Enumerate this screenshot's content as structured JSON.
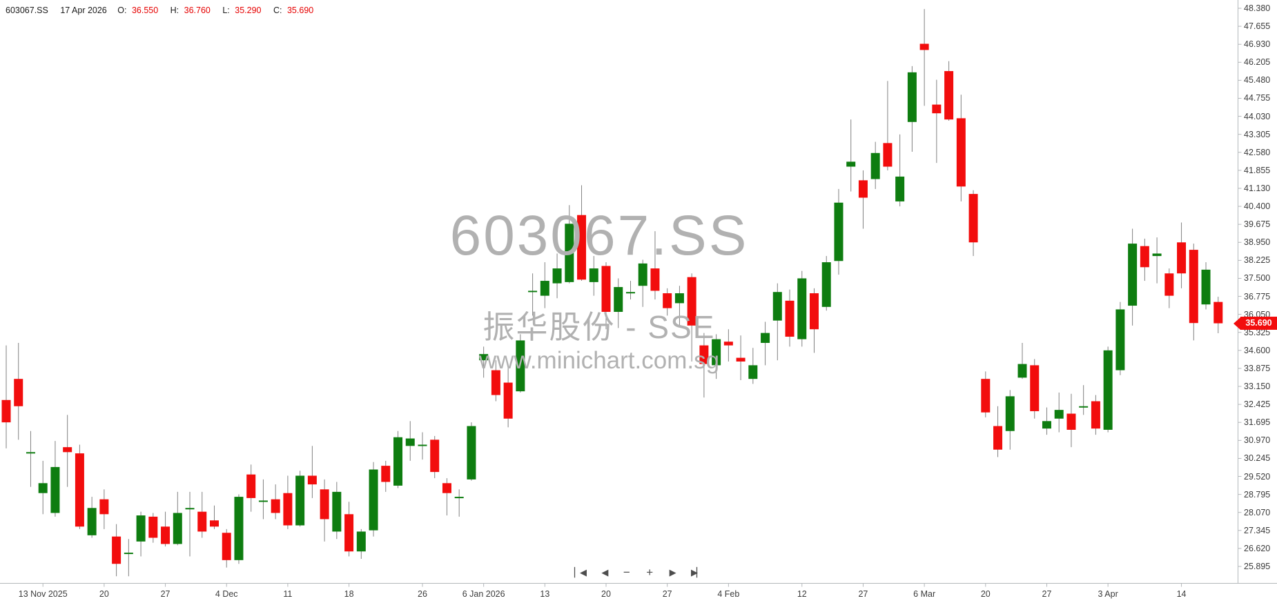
{
  "header": {
    "symbol": "603067.SS",
    "date": "17 Apr 2026",
    "o_label": "O:",
    "open": "36.550",
    "h_label": "H:",
    "high": "36.760",
    "l_label": "L:",
    "low": "35.290",
    "c_label": "C:",
    "close": "35.690"
  },
  "watermark": {
    "title": "603067.SS",
    "subtitle": "振华股份 - SSE",
    "url": "www.minichart.com.sg"
  },
  "price_marker": {
    "value": "35.690",
    "price": 35.69
  },
  "controls": [
    {
      "name": "skip-to-start",
      "glyph": "▏◀"
    },
    {
      "name": "step-back",
      "glyph": "◀"
    },
    {
      "name": "zoom-out",
      "glyph": "−"
    },
    {
      "name": "zoom-in",
      "glyph": "+"
    },
    {
      "name": "step-forward",
      "glyph": "▶"
    },
    {
      "name": "skip-to-end",
      "glyph": "▶▏"
    }
  ],
  "colors": {
    "up": "#0e7d10",
    "down": "#f20d0d",
    "wick": "#808080",
    "axis": "#b3b7ba",
    "tick_text": "#3b3b3b",
    "value_red": "#e60000",
    "watermark": "#b1b1b1",
    "marker_bg": "#f20d0d"
  },
  "y_axis": {
    "labels": [
      "48.380",
      "47.655",
      "46.930",
      "46.205",
      "45.480",
      "44.755",
      "44.030",
      "43.305",
      "42.580",
      "41.855",
      "41.130",
      "40.400",
      "39.675",
      "38.950",
      "38.225",
      "37.500",
      "36.775",
      "36.050",
      "35.325",
      "34.600",
      "33.875",
      "33.150",
      "32.425",
      "31.695",
      "30.970",
      "30.245",
      "29.520",
      "28.795",
      "28.070",
      "27.345",
      "26.620",
      "25.895"
    ]
  },
  "x_axis": {
    "ticks": [
      {
        "i": 3,
        "label": "13 Nov 2025"
      },
      {
        "i": 8,
        "label": "20"
      },
      {
        "i": 13,
        "label": "27"
      },
      {
        "i": 18,
        "label": "4 Dec"
      },
      {
        "i": 23,
        "label": "11"
      },
      {
        "i": 28,
        "label": "18"
      },
      {
        "i": 34,
        "label": "26"
      },
      {
        "i": 39,
        "label": "6 Jan 2026"
      },
      {
        "i": 44,
        "label": "13"
      },
      {
        "i": 49,
        "label": "20"
      },
      {
        "i": 54,
        "label": "27"
      },
      {
        "i": 59,
        "label": "4 Feb"
      },
      {
        "i": 65,
        "label": "12"
      },
      {
        "i": 70,
        "label": "27"
      },
      {
        "i": 75,
        "label": "6 Mar"
      },
      {
        "i": 80,
        "label": "20"
      },
      {
        "i": 85,
        "label": "27"
      },
      {
        "i": 90,
        "label": "3 Apr"
      },
      {
        "i": 96,
        "label": "14"
      }
    ]
  },
  "chart_data": {
    "type": "candlestick",
    "title": "603067.SS",
    "subtitle": "振华股份 - SSE",
    "ylim": [
      25.895,
      48.38
    ],
    "y_tick_step": 0.725,
    "legend_position": "none",
    "grid": false,
    "last_close": 35.69,
    "x_tick_labels": [
      "13 Nov 2025",
      "20",
      "27",
      "4 Dec",
      "11",
      "18",
      "26",
      "6 Jan 2026",
      "13",
      "20",
      "27",
      "4 Feb",
      "12",
      "27",
      "6 Mar",
      "20",
      "27",
      "3 Apr",
      "14"
    ],
    "candles_ohlc": [
      [
        32.6,
        34.8,
        30.65,
        31.7
      ],
      [
        33.45,
        34.9,
        31.0,
        32.35
      ],
      [
        30.45,
        31.35,
        29.1,
        30.5
      ],
      [
        28.85,
        30.15,
        28.0,
        29.25
      ],
      [
        28.05,
        30.95,
        27.9,
        29.9
      ],
      [
        30.7,
        32.0,
        29.1,
        30.5
      ],
      [
        30.45,
        30.8,
        27.4,
        27.5
      ],
      [
        27.15,
        28.7,
        27.05,
        28.25
      ],
      [
        28.6,
        29.0,
        27.4,
        28.0
      ],
      [
        27.1,
        27.6,
        25.5,
        26.0
      ],
      [
        26.4,
        27.0,
        25.5,
        26.45
      ],
      [
        26.9,
        28.1,
        26.3,
        27.95
      ],
      [
        27.9,
        28.05,
        26.85,
        27.05
      ],
      [
        27.5,
        28.1,
        26.7,
        26.8
      ],
      [
        26.8,
        28.9,
        26.75,
        28.05
      ],
      [
        28.2,
        28.9,
        26.3,
        28.25
      ],
      [
        28.1,
        28.9,
        27.05,
        27.3
      ],
      [
        27.75,
        28.35,
        27.4,
        27.5
      ],
      [
        27.25,
        27.4,
        25.85,
        26.15
      ],
      [
        26.15,
        28.8,
        26.0,
        28.7
      ],
      [
        29.6,
        30.0,
        28.1,
        28.65
      ],
      [
        28.5,
        29.4,
        27.8,
        28.55
      ],
      [
        28.6,
        29.2,
        27.8,
        28.05
      ],
      [
        28.85,
        29.55,
        27.4,
        27.55
      ],
      [
        27.55,
        29.75,
        27.5,
        29.55
      ],
      [
        29.55,
        30.75,
        28.65,
        29.2
      ],
      [
        29.0,
        29.4,
        26.9,
        27.8
      ],
      [
        27.3,
        29.3,
        27.0,
        28.9
      ],
      [
        28.0,
        28.5,
        26.3,
        26.5
      ],
      [
        26.5,
        27.4,
        26.2,
        27.3
      ],
      [
        27.35,
        30.1,
        27.1,
        29.8
      ],
      [
        29.95,
        30.15,
        28.9,
        29.3
      ],
      [
        29.15,
        31.35,
        29.05,
        31.1
      ],
      [
        30.75,
        31.75,
        30.15,
        31.05
      ],
      [
        30.75,
        31.3,
        30.2,
        30.8
      ],
      [
        31.0,
        31.15,
        29.45,
        29.7
      ],
      [
        29.25,
        29.45,
        27.95,
        28.85
      ],
      [
        28.65,
        29.0,
        27.9,
        28.7
      ],
      [
        29.4,
        31.7,
        29.35,
        31.55
      ],
      [
        34.2,
        34.75,
        33.5,
        34.45
      ],
      [
        33.8,
        34.2,
        32.55,
        32.8
      ],
      [
        33.3,
        33.9,
        31.5,
        31.85
      ],
      [
        32.95,
        35.25,
        32.9,
        35.0
      ],
      [
        36.95,
        37.7,
        36.0,
        37.0
      ],
      [
        36.8,
        38.15,
        36.3,
        37.4
      ],
      [
        37.3,
        38.5,
        36.7,
        37.9
      ],
      [
        37.35,
        40.45,
        37.3,
        39.7
      ],
      [
        40.05,
        41.25,
        37.4,
        37.45
      ],
      [
        37.35,
        38.4,
        36.8,
        37.9
      ],
      [
        38.0,
        38.15,
        35.45,
        36.15
      ],
      [
        36.15,
        37.5,
        35.5,
        37.15
      ],
      [
        36.9,
        37.4,
        36.65,
        36.95
      ],
      [
        37.2,
        38.25,
        36.35,
        38.1
      ],
      [
        37.9,
        39.4,
        36.65,
        37.0
      ],
      [
        36.9,
        37.1,
        36.0,
        36.3
      ],
      [
        36.5,
        37.2,
        35.6,
        36.9
      ],
      [
        37.55,
        37.7,
        34.15,
        35.6
      ],
      [
        34.8,
        35.3,
        32.7,
        34.05
      ],
      [
        34.0,
        35.25,
        33.45,
        35.05
      ],
      [
        34.95,
        35.45,
        34.15,
        34.8
      ],
      [
        34.3,
        35.2,
        33.4,
        34.15
      ],
      [
        33.45,
        34.7,
        33.25,
        34.0
      ],
      [
        34.9,
        35.75,
        34.0,
        35.3
      ],
      [
        35.8,
        37.3,
        34.2,
        36.95
      ],
      [
        36.6,
        37.05,
        34.75,
        35.15
      ],
      [
        35.05,
        37.8,
        34.75,
        37.5
      ],
      [
        36.9,
        37.1,
        34.5,
        35.45
      ],
      [
        36.35,
        38.4,
        36.2,
        38.15
      ],
      [
        38.2,
        41.1,
        37.65,
        40.55
      ],
      [
        42.0,
        43.9,
        41.0,
        42.2
      ],
      [
        41.45,
        41.85,
        39.5,
        40.75
      ],
      [
        41.5,
        43.0,
        41.1,
        42.55
      ],
      [
        42.95,
        45.45,
        41.85,
        42.0
      ],
      [
        40.6,
        43.3,
        40.4,
        41.6
      ],
      [
        43.8,
        46.05,
        42.6,
        45.8
      ],
      [
        46.95,
        48.35,
        44.45,
        46.7
      ],
      [
        44.5,
        45.5,
        42.15,
        44.15
      ],
      [
        45.85,
        46.25,
        43.85,
        43.9
      ],
      [
        43.95,
        44.9,
        40.6,
        41.2
      ],
      [
        40.9,
        41.05,
        38.4,
        38.95
      ],
      [
        33.45,
        33.75,
        31.9,
        32.1
      ],
      [
        31.55,
        32.35,
        30.3,
        30.6
      ],
      [
        31.35,
        33.0,
        30.6,
        32.75
      ],
      [
        33.5,
        34.9,
        33.45,
        34.05
      ],
      [
        34.0,
        34.25,
        31.85,
        32.15
      ],
      [
        31.45,
        32.3,
        31.2,
        31.75
      ],
      [
        31.85,
        32.9,
        31.3,
        32.2
      ],
      [
        32.05,
        32.85,
        30.7,
        31.4
      ],
      [
        32.3,
        33.2,
        32.0,
        32.35
      ],
      [
        32.55,
        32.8,
        31.2,
        31.45
      ],
      [
        31.4,
        34.75,
        31.3,
        34.6
      ],
      [
        33.8,
        36.55,
        33.6,
        36.25
      ],
      [
        36.4,
        39.5,
        35.6,
        38.9
      ],
      [
        38.8,
        39.1,
        37.4,
        37.95
      ],
      [
        38.4,
        39.15,
        37.3,
        38.5
      ],
      [
        37.7,
        37.9,
        36.3,
        36.8
      ],
      [
        38.95,
        39.75,
        37.1,
        37.7
      ],
      [
        38.65,
        38.9,
        35.0,
        35.7
      ],
      [
        36.45,
        38.15,
        36.25,
        37.85
      ],
      [
        36.55,
        36.76,
        35.29,
        35.69
      ]
    ]
  }
}
